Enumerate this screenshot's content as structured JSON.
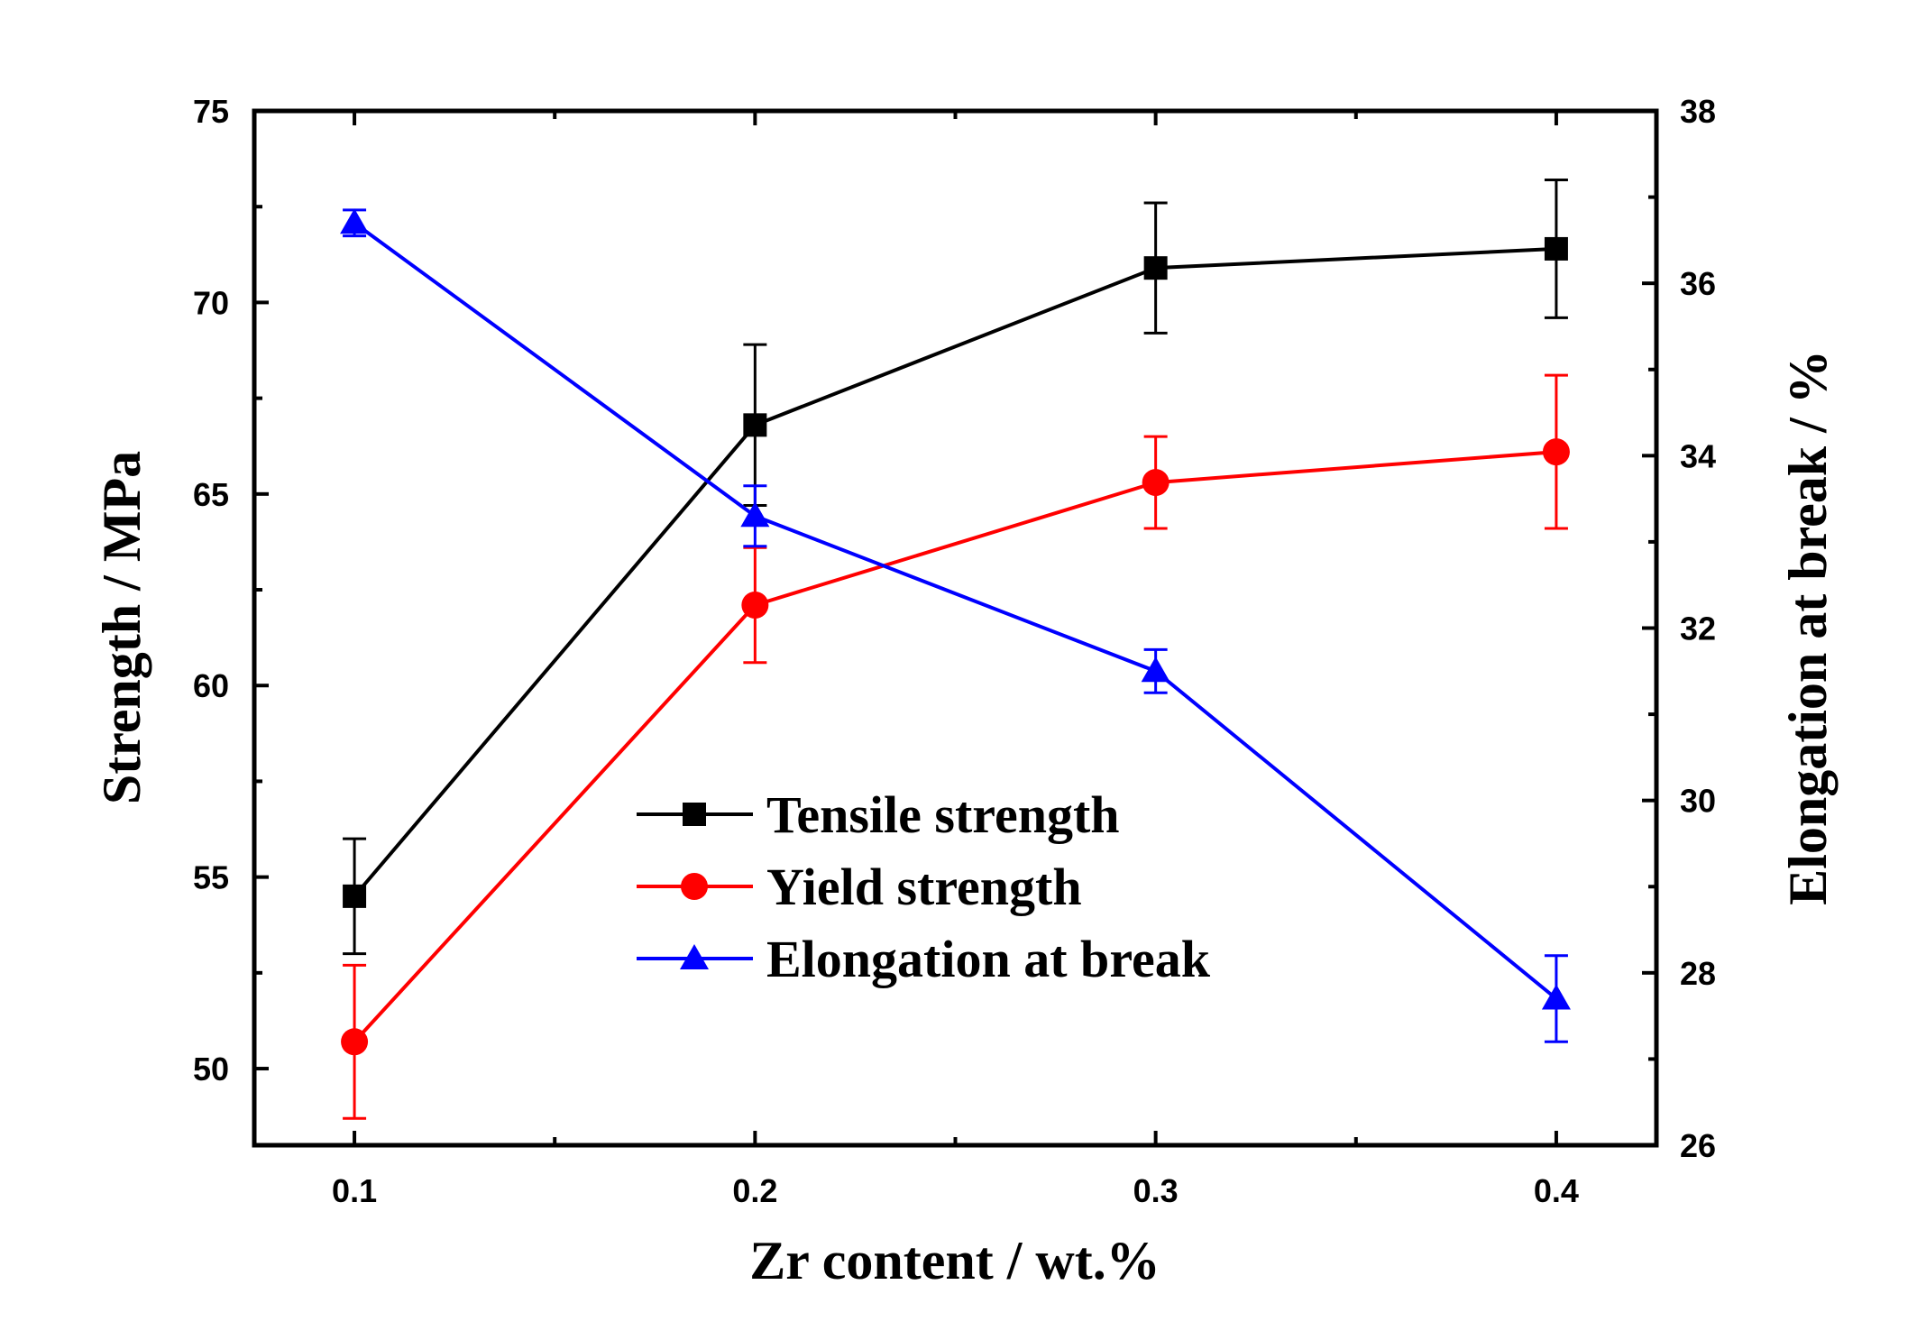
{
  "chart_data": {
    "type": "line",
    "x": [
      0.1,
      0.2,
      0.3,
      0.4
    ],
    "x_ticks": [
      "0.1",
      "0.2",
      "0.3",
      "0.4"
    ],
    "xlim": [
      0.075,
      0.425
    ],
    "xlabel": "Zr content / wt.%",
    "ylabel_left": "Strength / MPa",
    "ylim_left": [
      48,
      75
    ],
    "y_ticks_left": [
      "50",
      "55",
      "60",
      "65",
      "70",
      "75"
    ],
    "ylabel_right": "Elongation at break / %",
    "ylim_right": [
      26,
      38
    ],
    "y_ticks_right": [
      "26",
      "28",
      "30",
      "32",
      "34",
      "36",
      "38"
    ],
    "legend_position": "center",
    "series": [
      {
        "name": "Tensile strength",
        "axis": "left",
        "color": "#000000",
        "marker": "square",
        "values": [
          54.5,
          66.8,
          70.9,
          71.4
        ],
        "errors": [
          1.5,
          2.1,
          1.7,
          1.8
        ]
      },
      {
        "name": "Yield strength",
        "axis": "left",
        "color": "#ff0000",
        "marker": "circle",
        "values": [
          50.7,
          62.1,
          65.3,
          66.1
        ],
        "errors": [
          2.0,
          1.5,
          1.2,
          2.0
        ]
      },
      {
        "name": "Elongation at break",
        "axis": "right",
        "color": "#0000ff",
        "marker": "triangle",
        "values": [
          36.7,
          33.3,
          31.5,
          27.7
        ],
        "errors": [
          0.15,
          0.35,
          0.25,
          0.5
        ]
      }
    ]
  }
}
